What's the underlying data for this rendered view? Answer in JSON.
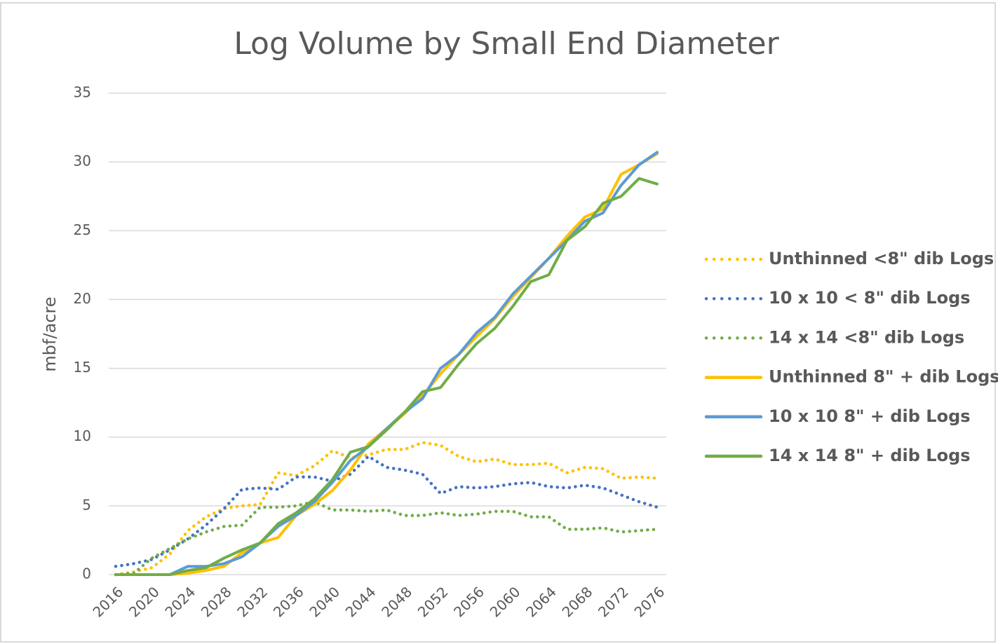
{
  "chart_data": {
    "type": "line",
    "title": "Log Volume by Small End Diameter",
    "y_label": "mbf/acre",
    "x": [
      2016,
      2018,
      2020,
      2022,
      2024,
      2026,
      2028,
      2030,
      2032,
      2034,
      2036,
      2038,
      2040,
      2042,
      2044,
      2046,
      2048,
      2050,
      2052,
      2054,
      2056,
      2058,
      2060,
      2062,
      2064,
      2066,
      2068,
      2070,
      2072,
      2074,
      2076
    ],
    "xlim": [
      2016,
      2076
    ],
    "xticks": [
      2016,
      2020,
      2024,
      2028,
      2032,
      2036,
      2040,
      2044,
      2048,
      2052,
      2056,
      2060,
      2064,
      2068,
      2072,
      2076
    ],
    "ylim": [
      0,
      35
    ],
    "yticks": [
      0,
      5,
      10,
      15,
      20,
      25,
      30,
      35
    ],
    "grid": true,
    "legend": "right",
    "series": [
      {
        "name": "Unthinned <8\" dib Logs",
        "color": "#FFC000",
        "style": "dotted",
        "values": [
          0,
          0.2,
          0.5,
          1.5,
          3.2,
          4.2,
          4.8,
          5,
          5.1,
          7.4,
          7.2,
          7.9,
          9,
          8.5,
          8.7,
          9.1,
          9.1,
          9.6,
          9.4,
          8.6,
          8.2,
          8.4,
          8,
          8,
          8.1,
          7.4,
          7.8,
          7.7,
          7,
          7.1,
          7
        ]
      },
      {
        "name": "10 x 10 < 8\" dib Logs",
        "color": "#4472C4",
        "style": "dotted",
        "values": [
          0.6,
          0.8,
          1.1,
          1.8,
          2.6,
          3.6,
          4.8,
          6.2,
          6.3,
          6.2,
          7.1,
          7.1,
          6.8,
          7.3,
          8.6,
          7.8,
          7.6,
          7.3,
          5.9,
          6.4,
          6.3,
          6.4,
          6.6,
          6.7,
          6.4,
          6.3,
          6.5,
          6.3,
          5.8,
          5.3,
          4.9
        ]
      },
      {
        "name": "14 x 14 <8\" dib Logs",
        "color": "#70AD47",
        "style": "dotted",
        "values": [
          0,
          0.1,
          1.2,
          1.9,
          2.6,
          3.1,
          3.5,
          3.6,
          4.9,
          4.9,
          5,
          5.3,
          4.7,
          4.7,
          4.6,
          4.7,
          4.3,
          4.3,
          4.5,
          4.3,
          4.4,
          4.6,
          4.6,
          4.2,
          4.2,
          3.3,
          3.3,
          3.4,
          3.1,
          3.2,
          3.3
        ]
      },
      {
        "name": "Unthinned 8\" + dib Logs",
        "color": "#FFC000",
        "style": "solid",
        "values": [
          0,
          0,
          0,
          0,
          0.1,
          0.3,
          0.6,
          1.6,
          2.3,
          2.7,
          4.3,
          5.1,
          6.1,
          7.6,
          9.5,
          10.6,
          11.7,
          13,
          14.6,
          16,
          17.3,
          18.6,
          20.2,
          21.6,
          23,
          24.6,
          26,
          26.6,
          29.1,
          29.8,
          30.6
        ]
      },
      {
        "name": "10 x 10 8\" + dib Logs",
        "color": "#5B9BD5",
        "style": "solid",
        "values": [
          0,
          0,
          0,
          0,
          0.6,
          0.6,
          0.8,
          1.3,
          2.3,
          3.5,
          4.3,
          5.3,
          6.7,
          8.3,
          9.3,
          10.6,
          11.8,
          12.8,
          15,
          16,
          17.6,
          18.7,
          20.4,
          21.7,
          23,
          24.3,
          25.7,
          26.3,
          28.3,
          29.8,
          30.7
        ]
      },
      {
        "name": "14 x 14 8\" + dib Logs",
        "color": "#70AD47",
        "style": "solid",
        "values": [
          0,
          0,
          0,
          0,
          0.3,
          0.5,
          1.2,
          1.8,
          2.3,
          3.7,
          4.5,
          5.5,
          6.9,
          8.9,
          9.3,
          10.5,
          11.8,
          13.3,
          13.6,
          15.3,
          16.8,
          17.9,
          19.5,
          21.3,
          21.8,
          24.3,
          25.3,
          27,
          27.5,
          28.8,
          28.4
        ]
      }
    ]
  }
}
